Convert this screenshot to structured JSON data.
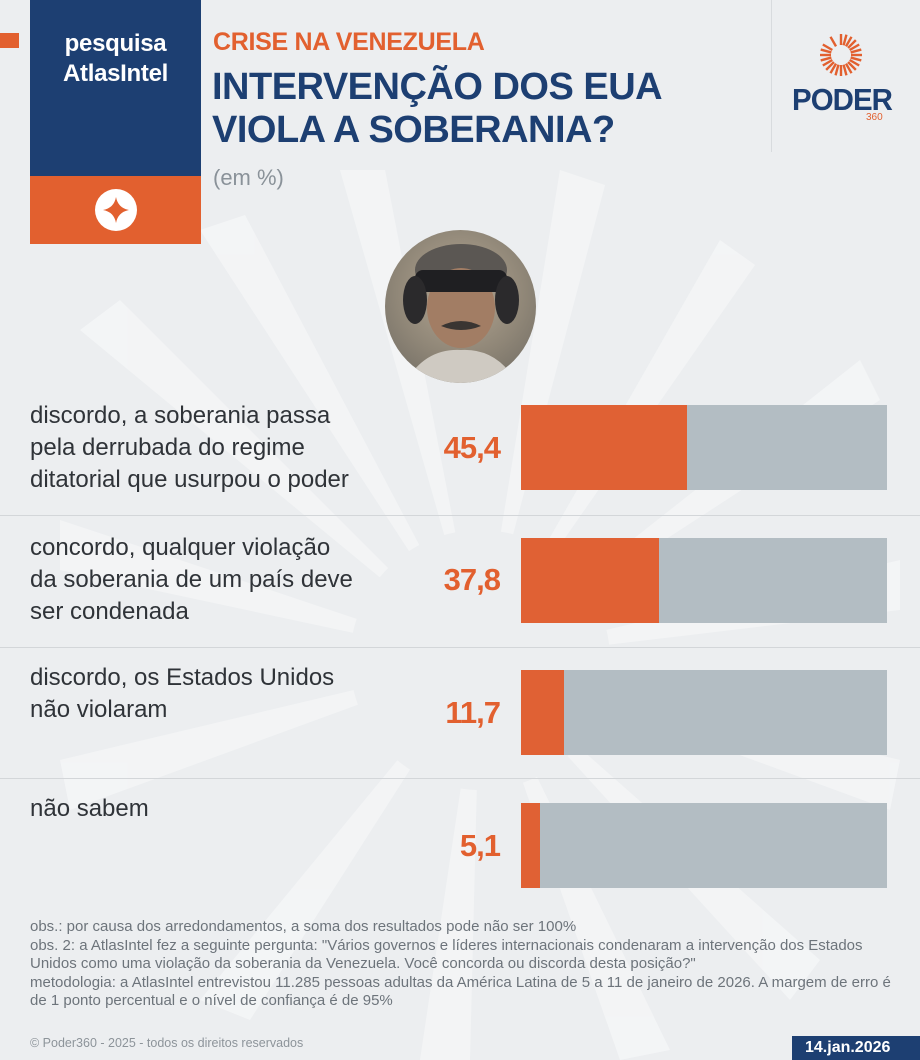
{
  "brand": {
    "survey_block": {
      "line1": "pesquisa",
      "line2": "AtlasIntel",
      "icon": "atlasintel-compass-icon"
    },
    "publisher_logo": {
      "word": "PODER",
      "suffix": "360",
      "icon": "poder360-sunburst-icon"
    }
  },
  "header": {
    "kicker": "CRISE NA VENEZUELA",
    "title_line1": "INTERVENÇÃO DOS EUA",
    "title_line2": "VIOLA A SOBERANIA?",
    "unit": "(em %)"
  },
  "portrait": {
    "icon": "person-portrait"
  },
  "colors": {
    "brand_blue": "#1d3f72",
    "accent_orange": "#e2602f",
    "bar_track": "#b3bdc3",
    "background": "#eceef0"
  },
  "chart_data": {
    "type": "bar",
    "orientation": "horizontal",
    "title": "INTERVENÇÃO DOS EUA VIOLA A SOBERANIA?",
    "subtitle": "CRISE NA VENEZUELA",
    "unit": "(em %)",
    "xlabel": "",
    "ylabel": "",
    "xlim": [
      0,
      100
    ],
    "grid": false,
    "legend": null,
    "categories": [
      "discordo, a soberania passa pela derrubada do regime ditatorial que usurpou o poder",
      "concordo, qualquer violação da soberania de um país deve ser condenada",
      "discordo, os Estados Unidos não violaram",
      "não sabem"
    ],
    "values": [
      45.4,
      37.8,
      11.7,
      5.1
    ],
    "value_labels": [
      "45,4",
      "37,8",
      "11,7",
      "5,1"
    ]
  },
  "rows": [
    {
      "label_lines": [
        "discordo, a soberania passa",
        "pela derrubada do regime",
        "ditatorial que usurpou o poder"
      ],
      "value": "45,4",
      "pct": 45.4
    },
    {
      "label_lines": [
        "concordo, qualquer violação",
        "da soberania de um país deve",
        "ser condenada"
      ],
      "value": "37,8",
      "pct": 37.8
    },
    {
      "label_lines": [
        "discordo, os Estados Unidos",
        "não violaram"
      ],
      "value": "11,7",
      "pct": 11.7
    },
    {
      "label_lines": [
        "não sabem"
      ],
      "value": "5,1",
      "pct": 5.1
    }
  ],
  "footer": {
    "notes": [
      "obs.: por causa dos arredondamentos, a soma dos resultados pode não ser 100%",
      "obs. 2: a AtlasIntel fez a seguinte pergunta: \"Vários governos e líderes internacionais condenaram a intervenção dos Estados Unidos como uma violação da soberania da Venezuela. Você concorda ou discorda desta posição?\"",
      "metodologia: a AtlasIntel entrevistou 11.285  pessoas adultas da América Latina de 5 a 11 de janeiro de 2026. A margem de erro é de 1 ponto percentual e o nível de confiança é de 95%"
    ],
    "copyright": "© Poder360 - 2025 - todos os direitos reservados",
    "date": "14.jan.2026"
  }
}
